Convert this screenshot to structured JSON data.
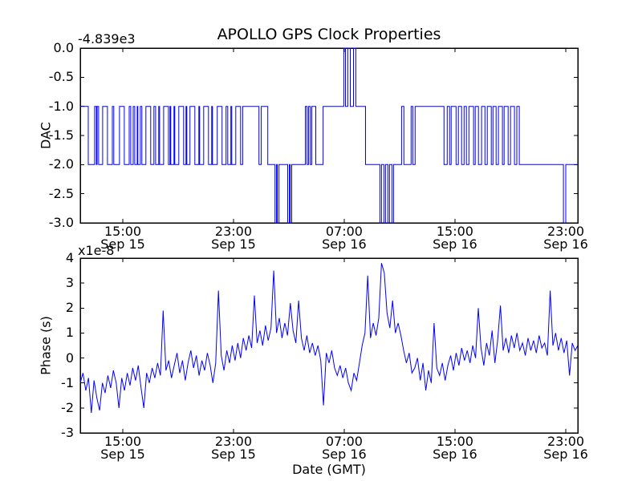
{
  "figure": {
    "title": "APOLLO GPS Clock Properties",
    "background": "#ffffff",
    "line_color": "#0000ff",
    "axes_color": "#000000"
  },
  "chart_data": [
    {
      "type": "line",
      "name": "dac-subplot",
      "ylabel": "DAC",
      "offset_text": "-4.839e3",
      "ylim": [
        -3.0,
        0.0
      ],
      "ytick_values": [
        0,
        -0.5,
        -1,
        -1.5,
        -2,
        -2.5,
        -3
      ],
      "ytick_labels": [
        "0.0",
        "-0.5",
        "-1.0",
        "-1.5",
        "-2.0",
        "-2.5",
        "-3.0"
      ],
      "x_hours_range": [
        0,
        36
      ],
      "xtick_hours": [
        3.08,
        11.09,
        19.1,
        27.11,
        35.13
      ],
      "xtick_labels": [
        [
          "15:00",
          "Sep 15"
        ],
        [
          "23:00",
          "Sep 15"
        ],
        [
          "07:00",
          "Sep 16"
        ],
        [
          "15:00",
          "Sep 16"
        ],
        [
          "23:00",
          "Sep 16"
        ]
      ],
      "grid": false,
      "steps": [
        [
          0,
          -1
        ],
        [
          0.58,
          -2
        ],
        [
          1.04,
          -1
        ],
        [
          1.16,
          -2
        ],
        [
          1.22,
          -1
        ],
        [
          1.33,
          -2
        ],
        [
          1.62,
          -1
        ],
        [
          1.97,
          -2
        ],
        [
          2.32,
          -1
        ],
        [
          2.43,
          -2
        ],
        [
          2.84,
          -1
        ],
        [
          3.19,
          -2
        ],
        [
          3.54,
          -1
        ],
        [
          3.65,
          -2
        ],
        [
          3.83,
          -1
        ],
        [
          3.94,
          -2
        ],
        [
          4.12,
          -1
        ],
        [
          4.17,
          -2
        ],
        [
          4.35,
          -1
        ],
        [
          4.46,
          -2
        ],
        [
          4.75,
          -1
        ],
        [
          5.1,
          -2
        ],
        [
          5.33,
          -1
        ],
        [
          5.45,
          -2
        ],
        [
          5.68,
          -1
        ],
        [
          5.74,
          -2
        ],
        [
          6.03,
          -1
        ],
        [
          6.38,
          -2
        ],
        [
          6.49,
          -1
        ],
        [
          6.55,
          -2
        ],
        [
          6.78,
          -1
        ],
        [
          6.84,
          -2
        ],
        [
          7.13,
          -1
        ],
        [
          7.48,
          -2
        ],
        [
          7.65,
          -1
        ],
        [
          7.71,
          -2
        ],
        [
          7.94,
          -1
        ],
        [
          8.29,
          -2
        ],
        [
          8.58,
          -1
        ],
        [
          8.64,
          -2
        ],
        [
          8.93,
          -1
        ],
        [
          9.28,
          -2
        ],
        [
          9.51,
          -1
        ],
        [
          9.57,
          -2
        ],
        [
          9.91,
          -1
        ],
        [
          10.26,
          -2
        ],
        [
          10.55,
          -1
        ],
        [
          10.67,
          -2
        ],
        [
          10.9,
          -1
        ],
        [
          10.96,
          -2
        ],
        [
          11.25,
          -1
        ],
        [
          11.6,
          -2
        ],
        [
          11.75,
          -1
        ],
        [
          12.93,
          -2
        ],
        [
          13.1,
          -1
        ],
        [
          13.57,
          -2
        ],
        [
          14.09,
          -3
        ],
        [
          14.2,
          -2
        ],
        [
          14.26,
          -3
        ],
        [
          14.38,
          -2
        ],
        [
          15.01,
          -3
        ],
        [
          15.13,
          -2
        ],
        [
          15.19,
          -3
        ],
        [
          15.3,
          -2
        ],
        [
          16.29,
          -1
        ],
        [
          16.41,
          -2
        ],
        [
          16.52,
          -1
        ],
        [
          16.64,
          -2
        ],
        [
          16.75,
          -1
        ],
        [
          17.04,
          -2
        ],
        [
          17.57,
          -1
        ],
        [
          19.07,
          0
        ],
        [
          19.19,
          -1
        ],
        [
          19.36,
          0
        ],
        [
          19.54,
          -1
        ],
        [
          19.77,
          0
        ],
        [
          19.94,
          -1
        ],
        [
          20.64,
          -2
        ],
        [
          21.68,
          -3
        ],
        [
          21.8,
          -2
        ],
        [
          21.97,
          -3
        ],
        [
          22.09,
          -2
        ],
        [
          22.26,
          -3
        ],
        [
          22.38,
          -2
        ],
        [
          22.55,
          -3
        ],
        [
          22.67,
          -2
        ],
        [
          23.25,
          -1
        ],
        [
          23.42,
          -2
        ],
        [
          23.94,
          -1
        ],
        [
          24.06,
          -2
        ],
        [
          24.23,
          -1
        ],
        [
          26.32,
          -2
        ],
        [
          26.55,
          -1
        ],
        [
          26.72,
          -2
        ],
        [
          26.84,
          -1
        ],
        [
          27.19,
          -2
        ],
        [
          27.36,
          -1
        ],
        [
          27.59,
          -2
        ],
        [
          27.77,
          -1
        ],
        [
          27.94,
          -2
        ],
        [
          28.12,
          -1
        ],
        [
          28.46,
          -2
        ],
        [
          28.58,
          -1
        ],
        [
          28.81,
          -2
        ],
        [
          29.04,
          -1
        ],
        [
          29.28,
          -2
        ],
        [
          29.45,
          -1
        ],
        [
          29.74,
          -2
        ],
        [
          29.86,
          -1
        ],
        [
          30.09,
          -2
        ],
        [
          30.26,
          -1
        ],
        [
          30.55,
          -2
        ],
        [
          30.67,
          -1
        ],
        [
          30.96,
          -2
        ],
        [
          31.13,
          -1
        ],
        [
          31.42,
          -2
        ],
        [
          31.59,
          -1
        ],
        [
          31.77,
          -2
        ],
        [
          34.96,
          -3
        ],
        [
          35.13,
          -2
        ]
      ]
    },
    {
      "type": "line",
      "name": "phase-subplot",
      "ylabel": "Phase (s)",
      "xlabel": "Date (GMT)",
      "offset_text": "x1e-8",
      "ylim": [
        -3,
        4
      ],
      "ytick_values": [
        4,
        3,
        2,
        1,
        0,
        -1,
        -2,
        -3
      ],
      "ytick_labels": [
        "4",
        "3",
        "2",
        "1",
        "0",
        "-1",
        "-2",
        "-3"
      ],
      "x_hours_range": [
        0,
        36
      ],
      "xtick_hours": [
        3.08,
        11.09,
        19.1,
        27.11,
        35.13
      ],
      "xtick_labels": [
        [
          "15:00",
          "Sep 15"
        ],
        [
          "23:00",
          "Sep 15"
        ],
        [
          "07:00",
          "Sep 16"
        ],
        [
          "15:00",
          "Sep 16"
        ],
        [
          "23:00",
          "Sep 16"
        ]
      ],
      "grid": false,
      "x_start_hour": 0,
      "x_step_hour": 0.2,
      "values": [
        -1.0,
        -0.6,
        -1.3,
        -0.8,
        -2.2,
        -0.9,
        -1.6,
        -2.1,
        -1.0,
        -1.4,
        -0.7,
        -1.2,
        -0.5,
        -1.0,
        -2.0,
        -0.8,
        -1.3,
        -0.6,
        -1.1,
        -0.4,
        -0.9,
        -0.3,
        -1.2,
        -2.0,
        -0.6,
        -1.0,
        -0.4,
        -0.8,
        -0.2,
        -0.7,
        1.9,
        -0.5,
        -0.1,
        -0.8,
        -0.3,
        0.2,
        -0.6,
        -0.1,
        -0.9,
        -0.2,
        0.3,
        -0.4,
        0.1,
        -0.7,
        -0.1,
        -0.5,
        0.2,
        -0.3,
        -1.0,
        -0.2,
        2.7,
        0.1,
        -0.5,
        0.3,
        -0.2,
        0.5,
        -0.1,
        0.6,
        0.0,
        0.8,
        0.3,
        0.9,
        0.4,
        2.5,
        0.6,
        1.1,
        0.5,
        1.3,
        0.7,
        1.2,
        3.5,
        1.0,
        1.6,
        0.8,
        1.4,
        0.9,
        2.2,
        1.1,
        0.6,
        2.3,
        0.8,
        0.3,
        0.9,
        0.2,
        0.6,
        0.1,
        0.5,
        -0.1,
        -1.9,
        0.2,
        -0.2,
        0.3,
        -0.4,
        -0.7,
        -0.3,
        -0.8,
        -0.4,
        -1.0,
        -1.3,
        -0.6,
        -0.9,
        -0.2,
        0.5,
        1.0,
        3.3,
        0.8,
        1.4,
        0.9,
        1.6,
        3.8,
        3.4,
        1.8,
        1.2,
        2.3,
        1.0,
        1.4,
        0.9,
        0.3,
        -0.2,
        0.2,
        -0.6,
        -0.4,
        0.0,
        -0.9,
        -0.2,
        -1.3,
        -0.5,
        -1.0,
        1.4,
        -0.4,
        -0.7,
        -0.2,
        -0.9,
        -0.3,
        0.1,
        -0.5,
        0.2,
        -0.3,
        0.4,
        -0.1,
        0.3,
        -0.2,
        0.5,
        0.0,
        2.0,
        0.4,
        -0.3,
        0.6,
        0.1,
        1.1,
        -0.2,
        0.7,
        2.1,
        0.3,
        0.8,
        0.2,
        0.9,
        0.4,
        1.0,
        0.3,
        0.6,
        0.1,
        0.8,
        0.3,
        0.7,
        0.2,
        0.9,
        0.4,
        0.6,
        0.1,
        2.7,
        0.5,
        1.0,
        0.3,
        0.8,
        0.2,
        0.7,
        -0.7,
        0.6,
        0.3,
        0.5
      ]
    }
  ]
}
